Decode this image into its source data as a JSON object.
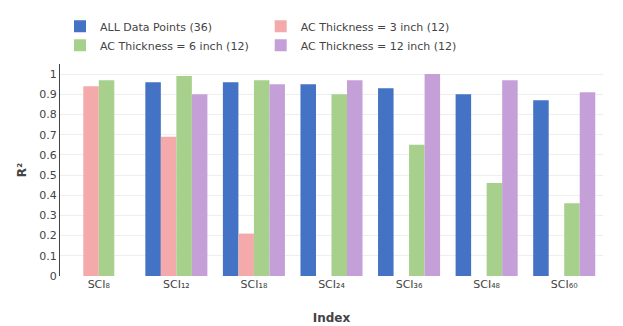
{
  "chart_data": {
    "type": "bar",
    "xlabel": "Index",
    "ylabel": "R²",
    "categories": [
      "SCI₈",
      "SCI₁₂",
      "SCI₁₈",
      "SCI₂₄",
      "SCI₃₆",
      "SCI₄₈",
      "SCI₆₀"
    ],
    "series": [
      {
        "name": "ALL Data Points (36)",
        "color": "#4472C4",
        "values": [
          null,
          0.96,
          0.96,
          0.95,
          0.93,
          0.9,
          0.87
        ]
      },
      {
        "name": "AC Thickness = 3 inch (12)",
        "color": "#F4AAAA",
        "values": [
          0.94,
          0.69,
          0.21,
          null,
          null,
          null,
          null
        ]
      },
      {
        "name": "AC Thickness = 6 inch (12)",
        "color": "#A8D08D",
        "values": [
          0.97,
          0.99,
          0.97,
          0.9,
          0.65,
          0.46,
          0.36
        ]
      },
      {
        "name": "AC Thickness = 12 inch (12)",
        "color": "#C5A0D8",
        "values": [
          null,
          0.9,
          0.95,
          0.97,
          1.0,
          0.97,
          0.91
        ]
      }
    ],
    "ylim": [
      0,
      1.05
    ],
    "yticks": [
      0,
      0.1,
      0.2,
      0.3,
      0.4,
      0.5,
      0.6,
      0.7,
      0.8,
      0.9,
      1
    ],
    "grid": true,
    "legend": "top"
  }
}
